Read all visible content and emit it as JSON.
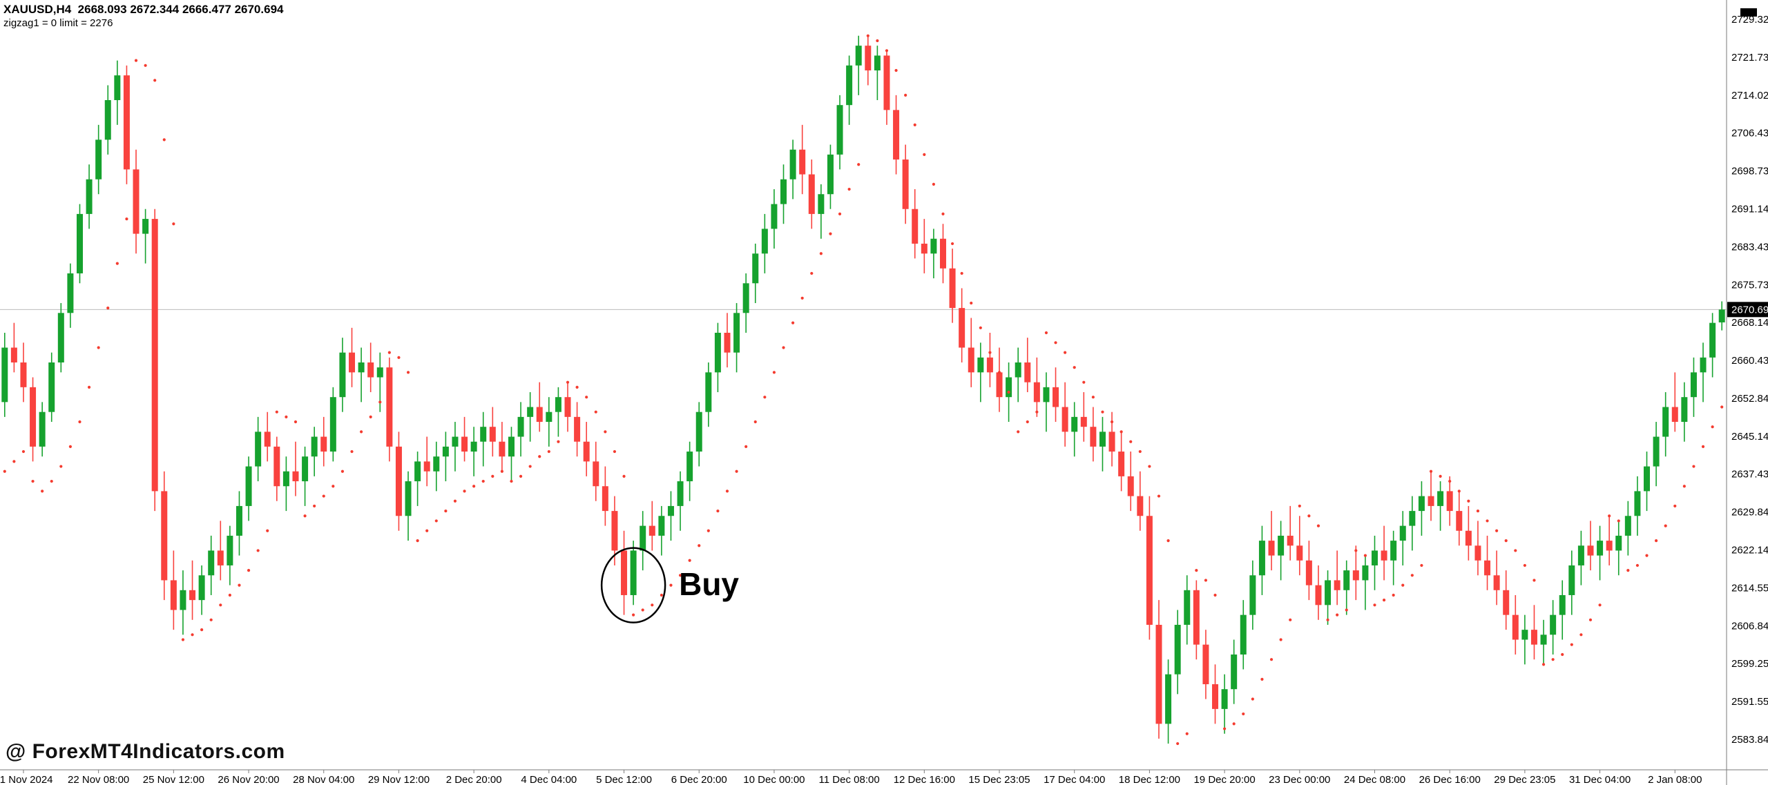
{
  "window": {
    "symbol_line": "XAUUSD,H4  2668.093 2672.344 2666.477 2670.694",
    "indicator_line": "zigzag1 = 0 limit = 2276"
  },
  "watermark": {
    "text": "@ ForexMT4Indicators.com"
  },
  "current_price": "2670.694",
  "annotations": {
    "buy": {
      "label": "Buy",
      "candle_index": 67,
      "price": 2615
    }
  },
  "chart_data": {
    "type": "candlestick",
    "symbol": "XAUUSD",
    "timeframe": "H4",
    "ohlc_current": {
      "open": 2668.093,
      "high": 2672.344,
      "low": 2666.477,
      "close": 2670.694
    },
    "price_axis": {
      "ticks": [
        "2729.320",
        "2721.730",
        "2714.025",
        "2706.435",
        "2698.730",
        "2691.140",
        "2683.435",
        "2675.730",
        "2668.140",
        "2660.435",
        "2652.845",
        "2645.140",
        "2637.435",
        "2629.845",
        "2622.140",
        "2614.550",
        "2606.845",
        "2599.255",
        "2591.550",
        "2583.845"
      ]
    },
    "time_axis": {
      "labels": [
        "21 Nov 2024",
        "22 Nov 08:00",
        "25 Nov 12:00",
        "26 Nov 20:00",
        "28 Nov 04:00",
        "29 Nov 12:00",
        "2 Dec 20:00",
        "4 Dec 04:00",
        "5 Dec 12:00",
        "6 Dec 20:00",
        "10 Dec 00:00",
        "11 Dec 08:00",
        "12 Dec 16:00",
        "15 Dec 23:05",
        "17 Dec 04:00",
        "18 Dec 12:00",
        "19 Dec 20:00",
        "23 Dec 00:00",
        "24 Dec 08:00",
        "26 Dec 16:00",
        "29 Dec 23:05",
        "31 Dec 04:00",
        "2 Jan 08:00"
      ],
      "first_label_candle": 2,
      "candles_per_label": 8
    },
    "candles": [
      [
        2652,
        2666,
        2649,
        2663
      ],
      [
        2663,
        2668,
        2658,
        2660
      ],
      [
        2660,
        2664,
        2652,
        2655
      ],
      [
        2655,
        2657,
        2640,
        2643
      ],
      [
        2643,
        2652,
        2641,
        2650
      ],
      [
        2650,
        2662,
        2648,
        2660
      ],
      [
        2660,
        2672,
        2658,
        2670
      ],
      [
        2670,
        2680,
        2667,
        2678
      ],
      [
        2678,
        2692,
        2676,
        2690
      ],
      [
        2690,
        2700,
        2687,
        2697
      ],
      [
        2697,
        2708,
        2694,
        2705
      ],
      [
        2705,
        2716,
        2702,
        2713
      ],
      [
        2713,
        2721,
        2708,
        2718
      ],
      [
        2718,
        2720,
        2696,
        2699
      ],
      [
        2699,
        2703,
        2682,
        2686
      ],
      [
        2686,
        2691,
        2680,
        2689
      ],
      [
        2689,
        2691,
        2630,
        2634
      ],
      [
        2634,
        2638,
        2612,
        2616
      ],
      [
        2616,
        2622,
        2606,
        2610
      ],
      [
        2610,
        2618,
        2605,
        2614
      ],
      [
        2614,
        2620,
        2608,
        2612
      ],
      [
        2612,
        2619,
        2609,
        2617
      ],
      [
        2617,
        2625,
        2613,
        2622
      ],
      [
        2622,
        2628,
        2616,
        2619
      ],
      [
        2619,
        2627,
        2615,
        2625
      ],
      [
        2625,
        2634,
        2621,
        2631
      ],
      [
        2631,
        2641,
        2628,
        2639
      ],
      [
        2639,
        2649,
        2636,
        2646
      ],
      [
        2646,
        2650,
        2640,
        2643
      ],
      [
        2643,
        2645,
        2632,
        2635
      ],
      [
        2635,
        2641,
        2630,
        2638
      ],
      [
        2638,
        2644,
        2633,
        2636
      ],
      [
        2636,
        2643,
        2631,
        2641
      ],
      [
        2641,
        2647,
        2637,
        2645
      ],
      [
        2645,
        2649,
        2639,
        2642
      ],
      [
        2642,
        2655,
        2640,
        2653
      ],
      [
        2653,
        2665,
        2650,
        2662
      ],
      [
        2662,
        2667,
        2655,
        2658
      ],
      [
        2658,
        2663,
        2652,
        2660
      ],
      [
        2660,
        2664,
        2654,
        2657
      ],
      [
        2657,
        2662,
        2650,
        2659
      ],
      [
        2659,
        2661,
        2640,
        2643
      ],
      [
        2643,
        2646,
        2626,
        2629
      ],
      [
        2629,
        2638,
        2624,
        2636
      ],
      [
        2636,
        2642,
        2631,
        2640
      ],
      [
        2640,
        2645,
        2635,
        2638
      ],
      [
        2638,
        2644,
        2634,
        2641
      ],
      [
        2641,
        2646,
        2636,
        2643
      ],
      [
        2643,
        2648,
        2638,
        2645
      ],
      [
        2645,
        2649,
        2640,
        2642
      ],
      [
        2642,
        2647,
        2637,
        2644
      ],
      [
        2644,
        2650,
        2639,
        2647
      ],
      [
        2647,
        2651,
        2641,
        2644
      ],
      [
        2644,
        2648,
        2638,
        2641
      ],
      [
        2641,
        2647,
        2636,
        2645
      ],
      [
        2645,
        2652,
        2641,
        2649
      ],
      [
        2649,
        2654,
        2644,
        2651
      ],
      [
        2651,
        2656,
        2646,
        2648
      ],
      [
        2648,
        2653,
        2643,
        2650
      ],
      [
        2650,
        2655,
        2645,
        2653
      ],
      [
        2653,
        2656,
        2646,
        2649
      ],
      [
        2649,
        2652,
        2641,
        2644
      ],
      [
        2644,
        2648,
        2637,
        2640
      ],
      [
        2640,
        2644,
        2632,
        2635
      ],
      [
        2635,
        2639,
        2627,
        2630
      ],
      [
        2630,
        2633,
        2619,
        2622
      ],
      [
        2622,
        2626,
        2609,
        2613
      ],
      [
        2613,
        2624,
        2611,
        2622
      ],
      [
        2622,
        2630,
        2618,
        2627
      ],
      [
        2627,
        2632,
        2622,
        2625
      ],
      [
        2625,
        2631,
        2621,
        2629
      ],
      [
        2629,
        2634,
        2624,
        2631
      ],
      [
        2631,
        2638,
        2626,
        2636
      ],
      [
        2636,
        2644,
        2632,
        2642
      ],
      [
        2642,
        2652,
        2639,
        2650
      ],
      [
        2650,
        2660,
        2647,
        2658
      ],
      [
        2658,
        2668,
        2654,
        2666
      ],
      [
        2666,
        2670,
        2659,
        2662
      ],
      [
        2662,
        2672,
        2658,
        2670
      ],
      [
        2670,
        2678,
        2666,
        2676
      ],
      [
        2676,
        2684,
        2672,
        2682
      ],
      [
        2682,
        2690,
        2678,
        2687
      ],
      [
        2687,
        2695,
        2683,
        2692
      ],
      [
        2692,
        2700,
        2688,
        2697
      ],
      [
        2697,
        2705,
        2693,
        2703
      ],
      [
        2703,
        2708,
        2694,
        2698
      ],
      [
        2698,
        2701,
        2687,
        2690
      ],
      [
        2690,
        2696,
        2685,
        2694
      ],
      [
        2694,
        2704,
        2691,
        2702
      ],
      [
        2702,
        2714,
        2699,
        2712
      ],
      [
        2712,
        2722,
        2708,
        2720
      ],
      [
        2720,
        2726,
        2714,
        2724
      ],
      [
        2724,
        2726,
        2716,
        2719
      ],
      [
        2719,
        2724,
        2713,
        2722
      ],
      [
        2722,
        2723,
        2708,
        2711
      ],
      [
        2711,
        2714,
        2698,
        2701
      ],
      [
        2701,
        2704,
        2688,
        2691
      ],
      [
        2691,
        2695,
        2681,
        2684
      ],
      [
        2684,
        2689,
        2678,
        2682
      ],
      [
        2682,
        2687,
        2677,
        2685
      ],
      [
        2685,
        2688,
        2676,
        2679
      ],
      [
        2679,
        2683,
        2668,
        2671
      ],
      [
        2671,
        2675,
        2660,
        2663
      ],
      [
        2663,
        2669,
        2655,
        2658
      ],
      [
        2658,
        2664,
        2652,
        2661
      ],
      [
        2661,
        2666,
        2655,
        2658
      ],
      [
        2658,
        2663,
        2650,
        2653
      ],
      [
        2653,
        2660,
        2648,
        2657
      ],
      [
        2657,
        2663,
        2652,
        2660
      ],
      [
        2660,
        2665,
        2654,
        2656
      ],
      [
        2656,
        2661,
        2649,
        2652
      ],
      [
        2652,
        2658,
        2646,
        2655
      ],
      [
        2655,
        2659,
        2648,
        2651
      ],
      [
        2651,
        2656,
        2643,
        2646
      ],
      [
        2646,
        2652,
        2641,
        2649
      ],
      [
        2649,
        2654,
        2644,
        2647
      ],
      [
        2647,
        2651,
        2640,
        2643
      ],
      [
        2643,
        2649,
        2638,
        2646
      ],
      [
        2646,
        2650,
        2639,
        2642
      ],
      [
        2642,
        2646,
        2634,
        2637
      ],
      [
        2637,
        2642,
        2630,
        2633
      ],
      [
        2633,
        2638,
        2626,
        2629
      ],
      [
        2629,
        2633,
        2604,
        2607
      ],
      [
        2607,
        2612,
        2584,
        2587
      ],
      [
        2587,
        2600,
        2583,
        2597
      ],
      [
        2597,
        2610,
        2593,
        2607
      ],
      [
        2607,
        2617,
        2603,
        2614
      ],
      [
        2614,
        2616,
        2600,
        2603
      ],
      [
        2603,
        2606,
        2592,
        2595
      ],
      [
        2595,
        2599,
        2587,
        2590
      ],
      [
        2590,
        2597,
        2585,
        2594
      ],
      [
        2594,
        2604,
        2591,
        2601
      ],
      [
        2601,
        2612,
        2598,
        2609
      ],
      [
        2609,
        2620,
        2606,
        2617
      ],
      [
        2617,
        2627,
        2613,
        2624
      ],
      [
        2624,
        2630,
        2618,
        2621
      ],
      [
        2621,
        2628,
        2616,
        2625
      ],
      [
        2625,
        2631,
        2620,
        2623
      ],
      [
        2623,
        2629,
        2617,
        2620
      ],
      [
        2620,
        2624,
        2612,
        2615
      ],
      [
        2615,
        2619,
        2608,
        2611
      ],
      [
        2611,
        2618,
        2607,
        2616
      ],
      [
        2616,
        2622,
        2611,
        2614
      ],
      [
        2614,
        2620,
        2609,
        2618
      ],
      [
        2618,
        2623,
        2612,
        2616
      ],
      [
        2616,
        2621,
        2610,
        2619
      ],
      [
        2619,
        2625,
        2614,
        2622
      ],
      [
        2622,
        2627,
        2616,
        2620
      ],
      [
        2620,
        2626,
        2615,
        2624
      ],
      [
        2624,
        2630,
        2619,
        2627
      ],
      [
        2627,
        2633,
        2622,
        2630
      ],
      [
        2630,
        2636,
        2625,
        2633
      ],
      [
        2633,
        2638,
        2628,
        2631
      ],
      [
        2631,
        2636,
        2626,
        2634
      ],
      [
        2634,
        2637,
        2627,
        2630
      ],
      [
        2630,
        2634,
        2623,
        2626
      ],
      [
        2626,
        2631,
        2620,
        2623
      ],
      [
        2623,
        2628,
        2617,
        2620
      ],
      [
        2620,
        2625,
        2614,
        2617
      ],
      [
        2617,
        2622,
        2611,
        2614
      ],
      [
        2614,
        2618,
        2606,
        2609
      ],
      [
        2609,
        2613,
        2601,
        2604
      ],
      [
        2604,
        2609,
        2599,
        2606
      ],
      [
        2606,
        2611,
        2600,
        2603
      ],
      [
        2603,
        2608,
        2599,
        2605
      ],
      [
        2605,
        2612,
        2601,
        2609
      ],
      [
        2609,
        2616,
        2604,
        2613
      ],
      [
        2613,
        2622,
        2609,
        2619
      ],
      [
        2619,
        2626,
        2615,
        2623
      ],
      [
        2623,
        2628,
        2618,
        2621
      ],
      [
        2621,
        2627,
        2616,
        2624
      ],
      [
        2624,
        2629,
        2619,
        2622
      ],
      [
        2622,
        2628,
        2617,
        2625
      ],
      [
        2625,
        2632,
        2621,
        2629
      ],
      [
        2629,
        2637,
        2625,
        2634
      ],
      [
        2634,
        2642,
        2630,
        2639
      ],
      [
        2639,
        2648,
        2635,
        2645
      ],
      [
        2645,
        2654,
        2641,
        2651
      ],
      [
        2651,
        2658,
        2646,
        2648
      ],
      [
        2648,
        2656,
        2644,
        2653
      ],
      [
        2653,
        2661,
        2649,
        2658
      ],
      [
        2658,
        2664,
        2652,
        2661
      ],
      [
        2661,
        2670,
        2657,
        2668
      ],
      [
        2668.093,
        2672.344,
        2666.477,
        2670.694
      ]
    ],
    "sar_dots": [
      2638,
      2640,
      2642,
      2636,
      2634,
      2636,
      2639,
      2643,
      2648,
      2655,
      2663,
      2671,
      2680,
      2689,
      2721,
      2720,
      2717,
      2705,
      2688,
      2604,
      2605,
      2606,
      2608,
      2611,
      2613,
      2615,
      2618,
      2622,
      2626,
      2650,
      2649,
      2648,
      2629,
      2631,
      2633,
      2635,
      2638,
      2642,
      2646,
      2649,
      2652,
      2662,
      2661,
      2658,
      2624,
      2626,
      2628,
      2630,
      2632,
      2634,
      2635,
      2636,
      2637,
      2638,
      2636,
      2637,
      2639,
      2641,
      2642,
      2644,
      2656,
      2655,
      2653,
      2650,
      2646,
      2642,
      2637,
      2609,
      2610,
      2611,
      2613,
      2615,
      2617,
      2620,
      2623,
      2626,
      2630,
      2634,
      2638,
      2643,
      2648,
      2653,
      2658,
      2663,
      2668,
      2673,
      2678,
      2682,
      2686,
      2690,
      2695,
      2700,
      2726,
      2725,
      2723,
      2719,
      2714,
      2708,
      2702,
      2696,
      2690,
      2684,
      2678,
      2672,
      2667,
      2662,
      2658,
      2654,
      2646,
      2648,
      2650,
      2666,
      2664,
      2662,
      2659,
      2656,
      2653,
      2650,
      2648,
      2646,
      2644,
      2642,
      2639,
      2633,
      2624,
      2583,
      2585,
      2618,
      2616,
      2613,
      2586,
      2587,
      2589,
      2592,
      2596,
      2600,
      2604,
      2608,
      2631,
      2629,
      2627,
      2608,
      2609,
      2610,
      2622,
      2621,
      2611,
      2612,
      2613,
      2615,
      2617,
      2619,
      2638,
      2637,
      2636,
      2634,
      2632,
      2630,
      2628,
      2626,
      2624,
      2622,
      2619,
      2616,
      2599,
      2600,
      2601,
      2603,
      2605,
      2608,
      2611,
      2629,
      2628,
      2618,
      2619,
      2621,
      2624,
      2627,
      2631,
      2635,
      2639,
      2643,
      2647,
      2651
    ],
    "colors": {
      "up": "#16a22e",
      "down": "#f9423e",
      "sar": "#f43b2f",
      "price_line": "#bbbbbb",
      "badge_bg": "#000000",
      "badge_text": "#ffffff",
      "axis": "#7a7a7a",
      "text": "#000000",
      "background": "#ffffff"
    },
    "legend_position": "none",
    "grid": false
  }
}
